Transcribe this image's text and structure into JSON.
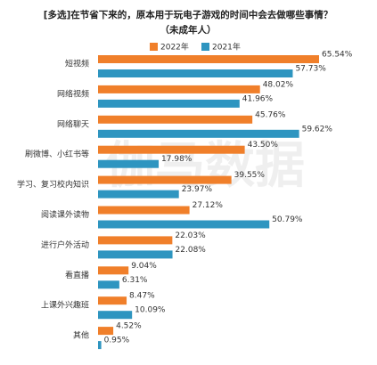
{
  "chart_data": {
    "type": "bar",
    "orientation": "horizontal",
    "title": "[多选]在节省下来的，原本用于玩电子游戏的时间中会去做哪些事情？",
    "subtitle": "（未成年人）",
    "watermark": "伽马数据",
    "categories": [
      "短视频",
      "网络视频",
      "网络聊天",
      "刷微博、小红书等",
      "学习、复习校内知识",
      "阅读课外读物",
      "进行户外活动",
      "看直播",
      "上课外兴趣班",
      "其他"
    ],
    "series": [
      {
        "name": "2022年",
        "color": "#f07f2a",
        "values": [
          65.54,
          48.02,
          45.76,
          43.5,
          39.55,
          27.12,
          22.03,
          9.04,
          8.47,
          4.52
        ],
        "value_labels": [
          "65.54%",
          "48.02%",
          "45.76%",
          "43.50%",
          "39.55%",
          "27.12%",
          "22.03%",
          "9.04%",
          "8.47%",
          "4.52%"
        ]
      },
      {
        "name": "2021年",
        "color": "#2e95c0",
        "values": [
          57.73,
          41.96,
          59.62,
          17.98,
          23.97,
          50.79,
          22.08,
          6.31,
          10.09,
          0.95
        ],
        "value_labels": [
          "57.73%",
          "41.96%",
          "59.62%",
          "17.98%",
          "23.97%",
          "50.79%",
          "22.08%",
          "6.31%",
          "10.09%",
          "0.95%"
        ]
      }
    ],
    "legend": "top"
  }
}
